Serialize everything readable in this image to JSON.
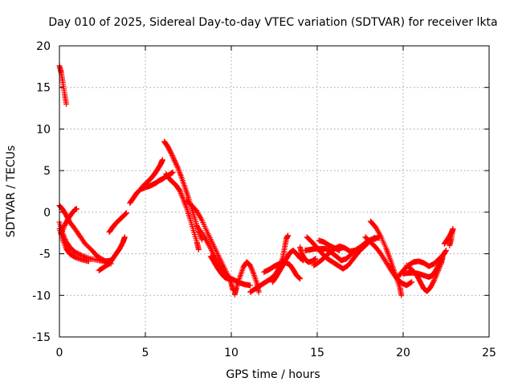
{
  "chart_data": {
    "type": "scatter",
    "title": "Day 010 of 2025, Sidereal Day-to-day VTEC variation (SDTVAR) for receiver lkta",
    "xlabel": "GPS time / hours",
    "ylabel": "SDTVAR / TECUs",
    "xlim": [
      0,
      25
    ],
    "ylim": [
      -15,
      20
    ],
    "xticks": [
      0,
      5,
      10,
      15,
      20,
      25
    ],
    "yticks": [
      -15,
      -10,
      -5,
      0,
      5,
      10,
      15,
      20
    ],
    "grid": true,
    "marker": "+",
    "color": "#ff0000",
    "tracks": [
      {
        "name": "arc-1",
        "points": [
          [
            0.0,
            17.6
          ],
          [
            0.1,
            16.8
          ],
          [
            0.2,
            15.6
          ],
          [
            0.3,
            14.2
          ],
          [
            0.4,
            13.0
          ]
        ]
      },
      {
        "name": "arc-2",
        "points": [
          [
            0.0,
            -1.2
          ],
          [
            0.2,
            -2.6
          ],
          [
            0.4,
            -3.6
          ],
          [
            0.6,
            -4.2
          ],
          [
            0.9,
            -4.8
          ],
          [
            1.3,
            -5.2
          ],
          [
            1.8,
            -5.6
          ],
          [
            2.3,
            -5.8
          ],
          [
            2.7,
            -5.9
          ],
          [
            3.0,
            -5.8
          ]
        ]
      },
      {
        "name": "arc-3",
        "points": [
          [
            0.0,
            -2.0
          ],
          [
            0.2,
            -3.3
          ],
          [
            0.4,
            -4.4
          ],
          [
            0.6,
            -5.0
          ],
          [
            0.9,
            -5.4
          ],
          [
            1.3,
            -5.7
          ],
          [
            1.7,
            -5.9
          ]
        ]
      },
      {
        "name": "arc-4",
        "points": [
          [
            0.0,
            0.8
          ],
          [
            0.2,
            0.3
          ],
          [
            0.4,
            -0.4
          ],
          [
            0.6,
            -1.2
          ],
          [
            0.9,
            -2.0
          ],
          [
            1.2,
            -2.9
          ],
          [
            1.5,
            -3.8
          ],
          [
            1.9,
            -4.6
          ],
          [
            2.2,
            -5.3
          ],
          [
            2.6,
            -5.8
          ],
          [
            3.0,
            -6.2
          ]
        ]
      },
      {
        "name": "arc-5",
        "points": [
          [
            0.1,
            -2.6
          ],
          [
            0.3,
            -1.6
          ],
          [
            0.5,
            -0.8
          ],
          [
            0.7,
            -0.2
          ],
          [
            0.9,
            0.3
          ],
          [
            1.0,
            0.4
          ]
        ]
      },
      {
        "name": "arc-6",
        "points": [
          [
            2.3,
            -7.0
          ],
          [
            2.6,
            -6.6
          ],
          [
            2.9,
            -6.2
          ],
          [
            3.1,
            -5.6
          ],
          [
            3.3,
            -5.0
          ],
          [
            3.5,
            -4.4
          ],
          [
            3.7,
            -3.6
          ],
          [
            3.8,
            -3.0
          ]
        ]
      },
      {
        "name": "arc-7",
        "points": [
          [
            2.9,
            -2.4
          ],
          [
            3.1,
            -1.8
          ],
          [
            3.3,
            -1.3
          ],
          [
            3.5,
            -0.9
          ],
          [
            3.7,
            -0.5
          ],
          [
            3.9,
            -0.1
          ]
        ]
      },
      {
        "name": "arc-8",
        "points": [
          [
            4.1,
            1.1
          ],
          [
            4.3,
            1.7
          ],
          [
            4.5,
            2.3
          ],
          [
            4.7,
            2.7
          ],
          [
            4.9,
            3.2
          ],
          [
            5.1,
            3.6
          ],
          [
            5.3,
            4.0
          ],
          [
            5.5,
            4.5
          ],
          [
            5.7,
            5.1
          ],
          [
            5.9,
            5.8
          ],
          [
            6.0,
            6.3
          ]
        ]
      },
      {
        "name": "arc-9",
        "points": [
          [
            4.8,
            2.8
          ],
          [
            5.0,
            3.0
          ],
          [
            5.2,
            3.1
          ],
          [
            5.4,
            3.3
          ],
          [
            5.6,
            3.5
          ],
          [
            5.8,
            3.8
          ],
          [
            6.0,
            4.0
          ],
          [
            6.2,
            4.3
          ],
          [
            6.4,
            4.5
          ],
          [
            6.6,
            4.8
          ]
        ]
      },
      {
        "name": "arc-10",
        "points": [
          [
            6.1,
            8.5
          ],
          [
            6.3,
            7.9
          ],
          [
            6.5,
            7.1
          ],
          [
            6.7,
            6.2
          ],
          [
            6.9,
            5.3
          ],
          [
            7.1,
            4.2
          ],
          [
            7.3,
            3.0
          ],
          [
            7.5,
            1.8
          ],
          [
            7.7,
            0.4
          ],
          [
            7.9,
            -0.9
          ],
          [
            8.1,
            -2.3
          ],
          [
            8.3,
            -3.3
          ]
        ]
      },
      {
        "name": "arc-11",
        "points": [
          [
            6.2,
            4.6
          ],
          [
            6.4,
            4.0
          ],
          [
            6.6,
            3.6
          ],
          [
            6.8,
            3.2
          ],
          [
            7.0,
            2.6
          ],
          [
            7.2,
            1.6
          ],
          [
            7.4,
            0.5
          ],
          [
            7.6,
            -0.8
          ],
          [
            7.8,
            -2.2
          ],
          [
            8.0,
            -3.6
          ],
          [
            8.1,
            -4.5
          ]
        ]
      },
      {
        "name": "arc-12",
        "points": [
          [
            7.4,
            1.4
          ],
          [
            7.7,
            0.8
          ],
          [
            8.0,
            0.1
          ],
          [
            8.3,
            -1.0
          ],
          [
            8.6,
            -2.4
          ],
          [
            8.9,
            -3.7
          ],
          [
            9.2,
            -5.0
          ],
          [
            9.5,
            -6.3
          ],
          [
            9.8,
            -7.6
          ],
          [
            10.0,
            -8.6
          ],
          [
            10.1,
            -9.4
          ]
        ]
      },
      {
        "name": "arc-13",
        "points": [
          [
            8.0,
            -1.7
          ],
          [
            8.4,
            -2.8
          ],
          [
            8.7,
            -4.0
          ],
          [
            9.0,
            -5.2
          ],
          [
            9.3,
            -6.3
          ],
          [
            9.6,
            -7.2
          ],
          [
            9.9,
            -7.9
          ],
          [
            10.2,
            -8.2
          ],
          [
            10.5,
            -8.5
          ],
          [
            10.8,
            -8.7
          ],
          [
            11.1,
            -8.8
          ]
        ]
      },
      {
        "name": "arc-14",
        "points": [
          [
            8.8,
            -5.3
          ],
          [
            9.0,
            -6.0
          ],
          [
            9.2,
            -6.7
          ],
          [
            9.4,
            -7.3
          ],
          [
            9.6,
            -7.8
          ],
          [
            9.8,
            -8.0
          ]
        ]
      },
      {
        "name": "arc-15",
        "points": [
          [
            10.2,
            -9.9
          ],
          [
            10.3,
            -9.1
          ],
          [
            10.5,
            -7.8
          ],
          [
            10.7,
            -6.6
          ],
          [
            10.9,
            -6.0
          ],
          [
            11.1,
            -6.4
          ],
          [
            11.3,
            -7.4
          ],
          [
            11.5,
            -8.6
          ],
          [
            11.6,
            -9.6
          ]
        ]
      },
      {
        "name": "arc-16",
        "points": [
          [
            11.1,
            -9.6
          ],
          [
            11.4,
            -9.2
          ],
          [
            11.7,
            -8.8
          ],
          [
            12.0,
            -8.4
          ],
          [
            12.3,
            -8.0
          ],
          [
            12.6,
            -7.4
          ],
          [
            12.8,
            -6.6
          ],
          [
            13.0,
            -5.5
          ],
          [
            13.1,
            -4.3
          ],
          [
            13.2,
            -3.2
          ],
          [
            13.3,
            -2.8
          ]
        ]
      },
      {
        "name": "arc-17",
        "points": [
          [
            11.9,
            -7.2
          ],
          [
            12.2,
            -6.9
          ],
          [
            12.5,
            -6.5
          ],
          [
            12.8,
            -6.2
          ],
          [
            13.1,
            -6.0
          ],
          [
            13.4,
            -6.3
          ],
          [
            13.6,
            -6.9
          ],
          [
            13.8,
            -7.6
          ],
          [
            14.0,
            -8.0
          ]
        ]
      },
      {
        "name": "arc-18",
        "points": [
          [
            12.4,
            -8.4
          ],
          [
            12.6,
            -7.8
          ],
          [
            12.8,
            -7.1
          ],
          [
            13.0,
            -6.4
          ],
          [
            13.2,
            -5.6
          ],
          [
            13.4,
            -4.9
          ],
          [
            13.6,
            -4.6
          ],
          [
            13.8,
            -5.0
          ],
          [
            14.0,
            -5.5
          ],
          [
            14.2,
            -5.8
          ]
        ]
      },
      {
        "name": "arc-19",
        "points": [
          [
            14.0,
            -4.2
          ],
          [
            14.1,
            -5.0
          ],
          [
            14.3,
            -5.7
          ],
          [
            14.5,
            -6.0
          ],
          [
            14.7,
            -5.9
          ],
          [
            14.9,
            -5.6
          ]
        ]
      },
      {
        "name": "arc-20",
        "points": [
          [
            14.4,
            -3.0
          ],
          [
            14.7,
            -3.6
          ],
          [
            15.0,
            -4.3
          ],
          [
            15.3,
            -5.0
          ],
          [
            15.6,
            -5.6
          ],
          [
            15.9,
            -6.0
          ],
          [
            16.2,
            -6.4
          ],
          [
            16.5,
            -6.8
          ],
          [
            16.8,
            -6.4
          ],
          [
            17.1,
            -5.6
          ],
          [
            17.4,
            -4.8
          ],
          [
            17.7,
            -4.2
          ],
          [
            18.0,
            -3.6
          ],
          [
            18.3,
            -3.1
          ],
          [
            18.6,
            -3.1
          ]
        ]
      },
      {
        "name": "arc-21",
        "points": [
          [
            14.8,
            -6.4
          ],
          [
            15.1,
            -6.0
          ],
          [
            15.4,
            -5.5
          ],
          [
            15.7,
            -4.9
          ],
          [
            16.0,
            -4.4
          ],
          [
            16.3,
            -4.1
          ],
          [
            16.6,
            -4.3
          ],
          [
            16.9,
            -4.7
          ],
          [
            17.2,
            -4.6
          ],
          [
            17.5,
            -4.2
          ],
          [
            17.8,
            -3.7
          ],
          [
            18.1,
            -3.3
          ],
          [
            18.4,
            -3.2
          ]
        ]
      },
      {
        "name": "arc-22",
        "points": [
          [
            14.3,
            -4.6
          ],
          [
            14.6,
            -4.5
          ],
          [
            14.9,
            -4.4
          ],
          [
            15.2,
            -4.4
          ],
          [
            15.5,
            -4.4
          ],
          [
            15.8,
            -4.8
          ],
          [
            16.1,
            -5.3
          ],
          [
            16.4,
            -5.8
          ],
          [
            16.7,
            -5.6
          ],
          [
            17.0,
            -5.0
          ],
          [
            17.3,
            -4.5
          ],
          [
            17.6,
            -4.2
          ]
        ]
      },
      {
        "name": "arc-23",
        "points": [
          [
            15.1,
            -3.4
          ],
          [
            15.4,
            -3.6
          ],
          [
            15.7,
            -4.0
          ],
          [
            16.0,
            -4.3
          ],
          [
            16.3,
            -4.6
          ]
        ]
      },
      {
        "name": "arc-24",
        "points": [
          [
            18.1,
            -1.1
          ],
          [
            18.4,
            -1.8
          ],
          [
            18.7,
            -2.9
          ],
          [
            19.0,
            -4.3
          ],
          [
            19.2,
            -5.4
          ],
          [
            19.4,
            -6.6
          ],
          [
            19.6,
            -7.8
          ],
          [
            19.8,
            -9.0
          ],
          [
            19.9,
            -10.0
          ]
        ]
      },
      {
        "name": "arc-25",
        "points": [
          [
            17.8,
            -3.0
          ],
          [
            18.1,
            -3.6
          ],
          [
            18.4,
            -4.2
          ],
          [
            18.7,
            -5.0
          ],
          [
            19.0,
            -6.0
          ],
          [
            19.3,
            -7.0
          ],
          [
            19.6,
            -7.9
          ],
          [
            19.9,
            -8.5
          ],
          [
            20.2,
            -8.8
          ],
          [
            20.5,
            -8.4
          ]
        ]
      },
      {
        "name": "arc-26",
        "points": [
          [
            20.2,
            -6.4
          ],
          [
            20.5,
            -6.9
          ],
          [
            20.8,
            -7.6
          ],
          [
            21.0,
            -8.4
          ],
          [
            21.2,
            -9.2
          ],
          [
            21.4,
            -9.5
          ],
          [
            21.6,
            -9.0
          ],
          [
            21.8,
            -8.2
          ],
          [
            22.0,
            -7.2
          ],
          [
            22.2,
            -6.2
          ],
          [
            22.3,
            -5.4
          ]
        ]
      },
      {
        "name": "arc-27",
        "points": [
          [
            20.0,
            -7.4
          ],
          [
            20.3,
            -7.3
          ],
          [
            20.6,
            -7.3
          ],
          [
            20.9,
            -7.4
          ],
          [
            21.2,
            -7.6
          ],
          [
            21.5,
            -7.8
          ],
          [
            21.7,
            -7.6
          ],
          [
            21.9,
            -7.0
          ],
          [
            22.1,
            -6.2
          ],
          [
            22.3,
            -5.2
          ],
          [
            22.5,
            -4.6
          ]
        ]
      },
      {
        "name": "arc-28",
        "points": [
          [
            19.7,
            -7.8
          ],
          [
            20.0,
            -7.0
          ],
          [
            20.3,
            -6.4
          ],
          [
            20.6,
            -6.0
          ],
          [
            20.9,
            -5.9
          ],
          [
            21.2,
            -6.1
          ],
          [
            21.5,
            -6.5
          ],
          [
            21.8,
            -6.2
          ],
          [
            22.1,
            -5.6
          ],
          [
            22.4,
            -5.0
          ]
        ]
      },
      {
        "name": "arc-29",
        "points": [
          [
            22.4,
            -3.8
          ],
          [
            22.6,
            -3.2
          ],
          [
            22.8,
            -2.5
          ],
          [
            22.9,
            -2.0
          ],
          [
            22.8,
            -3.2
          ],
          [
            22.7,
            -4.0
          ]
        ]
      }
    ]
  }
}
